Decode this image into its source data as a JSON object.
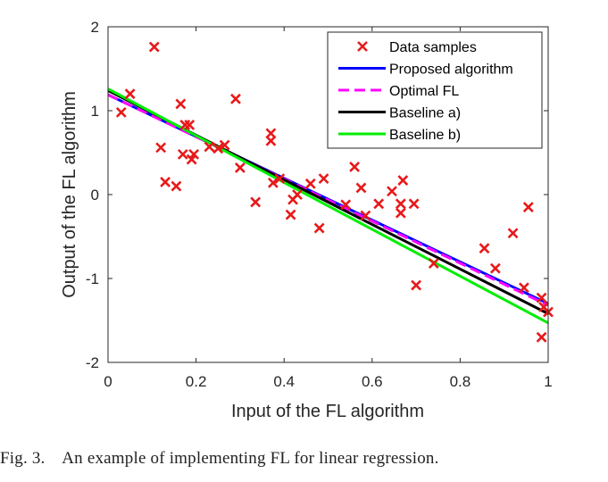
{
  "caption": "Fig. 3.    An example of implementing FL for linear regression.",
  "chart_data": {
    "type": "scatter",
    "xlabel": "Input of the FL algorithm",
    "ylabel": "Output of the FL algorithm",
    "xlim": [
      0,
      1
    ],
    "ylim": [
      -2,
      2
    ],
    "x_ticks": [
      "0",
      "0.2",
      "0.4",
      "0.6",
      "0.8",
      "1"
    ],
    "y_ticks": [
      "-2",
      "-1",
      "0",
      "1",
      "2"
    ],
    "grid": false,
    "legend_position": "top-right",
    "samples": {
      "name": "Data samples",
      "color": "#e8191a",
      "marker": "x",
      "points": [
        [
          0.03,
          0.98
        ],
        [
          0.05,
          1.2
        ],
        [
          0.105,
          1.76
        ],
        [
          0.12,
          0.56
        ],
        [
          0.13,
          0.15
        ],
        [
          0.155,
          0.1
        ],
        [
          0.165,
          1.08
        ],
        [
          0.17,
          0.48
        ],
        [
          0.175,
          0.83
        ],
        [
          0.185,
          0.83
        ],
        [
          0.19,
          0.42
        ],
        [
          0.195,
          0.48
        ],
        [
          0.23,
          0.57
        ],
        [
          0.25,
          0.55
        ],
        [
          0.265,
          0.59
        ],
        [
          0.29,
          1.14
        ],
        [
          0.3,
          0.32
        ],
        [
          0.335,
          -0.09
        ],
        [
          0.37,
          0.73
        ],
        [
          0.37,
          0.64
        ],
        [
          0.375,
          0.14
        ],
        [
          0.39,
          0.19
        ],
        [
          0.415,
          -0.24
        ],
        [
          0.42,
          -0.06
        ],
        [
          0.43,
          0.0
        ],
        [
          0.46,
          0.13
        ],
        [
          0.48,
          -0.4
        ],
        [
          0.49,
          0.19
        ],
        [
          0.54,
          -0.12
        ],
        [
          0.56,
          0.33
        ],
        [
          0.575,
          0.08
        ],
        [
          0.585,
          -0.25
        ],
        [
          0.615,
          -0.11
        ],
        [
          0.645,
          0.04
        ],
        [
          0.665,
          -0.11
        ],
        [
          0.665,
          -0.22
        ],
        [
          0.67,
          0.17
        ],
        [
          0.695,
          -0.11
        ],
        [
          0.7,
          -1.08
        ],
        [
          0.74,
          -0.82
        ],
        [
          0.855,
          -0.64
        ],
        [
          0.88,
          -0.88
        ],
        [
          0.92,
          -0.46
        ],
        [
          0.945,
          -1.11
        ],
        [
          0.955,
          -0.15
        ],
        [
          0.985,
          -1.23
        ],
        [
          0.985,
          -1.7
        ],
        [
          0.99,
          -1.34
        ],
        [
          1.0,
          -1.4
        ]
      ]
    },
    "series": [
      {
        "name": "Proposed algorithm",
        "color": "#0000ff",
        "dash": "solid",
        "x": [
          0,
          1
        ],
        "y": [
          1.19,
          -1.3
        ]
      },
      {
        "name": "Optimal FL",
        "color": "#ff00ff",
        "dash": "dashed",
        "x": [
          0,
          1
        ],
        "y": [
          1.19,
          -1.32
        ]
      },
      {
        "name": "Baseline a)",
        "color": "#000000",
        "dash": "solid",
        "x": [
          0,
          1
        ],
        "y": [
          1.24,
          -1.42
        ]
      },
      {
        "name": "Baseline b)",
        "color": "#00ee00",
        "dash": "solid",
        "x": [
          0,
          1
        ],
        "y": [
          1.26,
          -1.53
        ]
      }
    ]
  }
}
